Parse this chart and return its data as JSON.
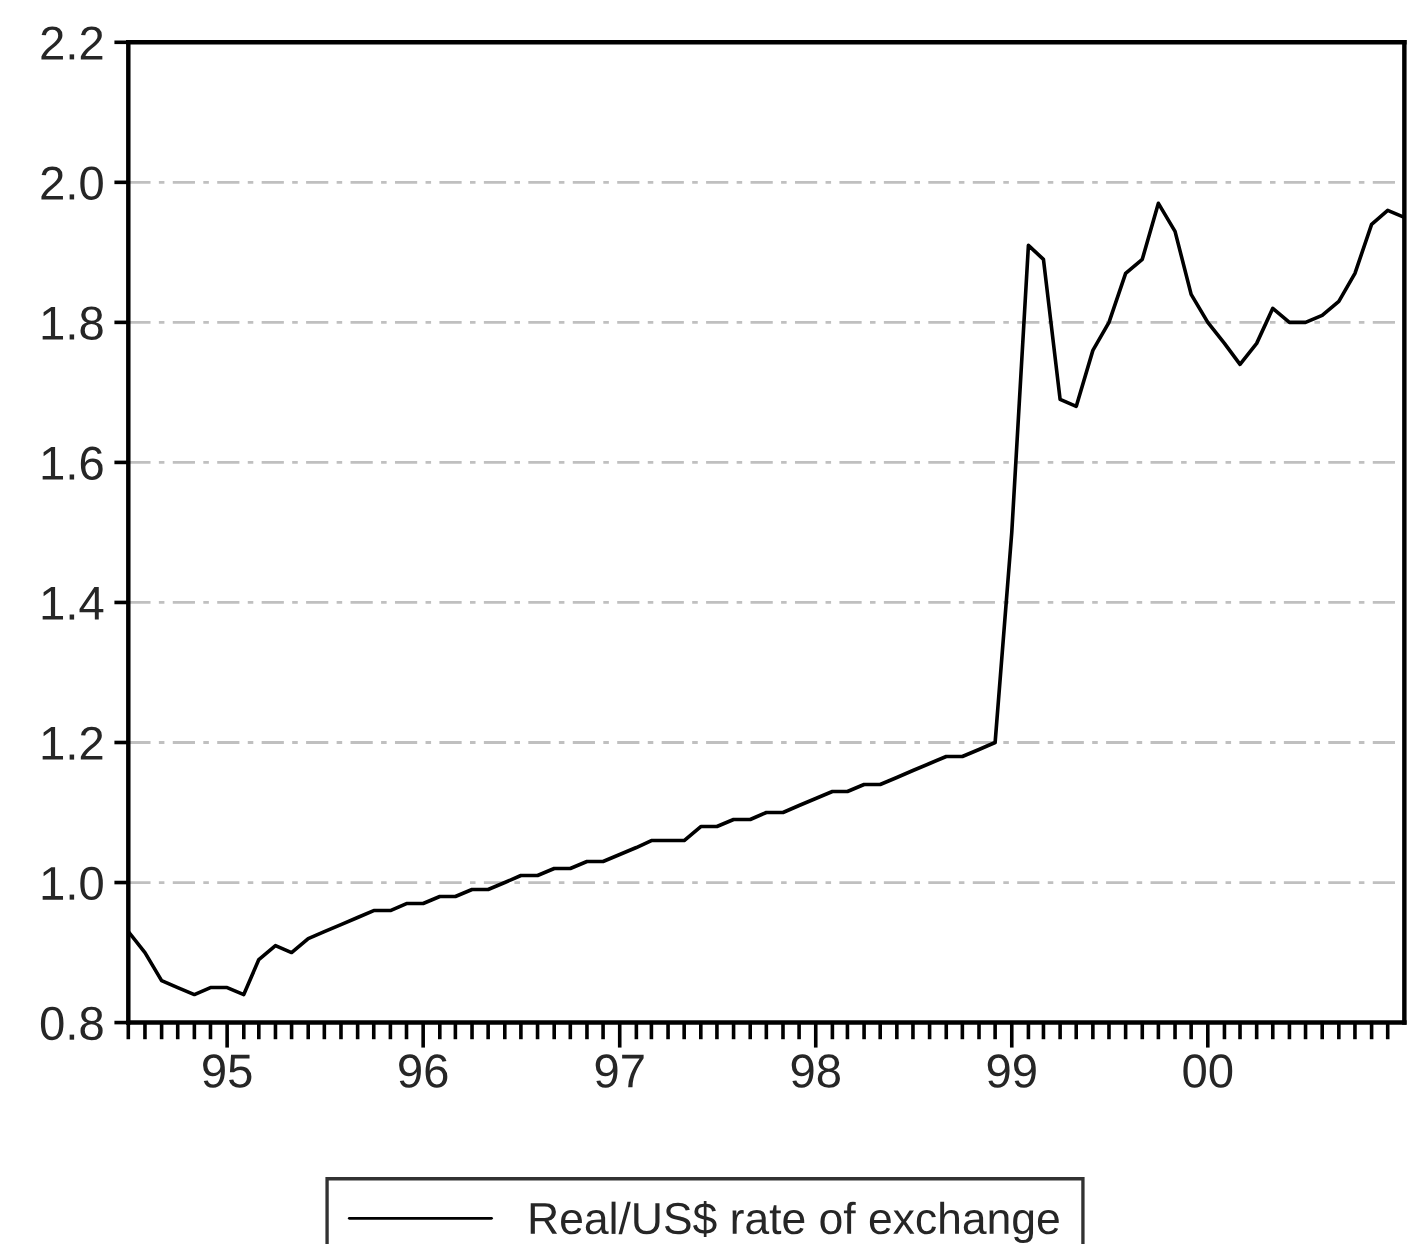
{
  "chart_data": {
    "type": "line",
    "x": [
      "1994-07",
      "1994-08",
      "1994-09",
      "1994-10",
      "1994-11",
      "1994-12",
      "1995-01",
      "1995-02",
      "1995-03",
      "1995-04",
      "1995-05",
      "1995-06",
      "1995-07",
      "1995-08",
      "1995-09",
      "1995-10",
      "1995-11",
      "1995-12",
      "1996-01",
      "1996-02",
      "1996-03",
      "1996-04",
      "1996-05",
      "1996-06",
      "1996-07",
      "1996-08",
      "1996-09",
      "1996-10",
      "1996-11",
      "1996-12",
      "1997-01",
      "1997-02",
      "1997-03",
      "1997-04",
      "1997-05",
      "1997-06",
      "1997-07",
      "1997-08",
      "1997-09",
      "1997-10",
      "1997-11",
      "1997-12",
      "1998-01",
      "1998-02",
      "1998-03",
      "1998-04",
      "1998-05",
      "1998-06",
      "1998-07",
      "1998-08",
      "1998-09",
      "1998-10",
      "1998-11",
      "1998-12",
      "1999-01",
      "1999-02",
      "1999-03",
      "1999-04",
      "1999-05",
      "1999-06",
      "1999-07",
      "1999-08",
      "1999-09",
      "1999-10",
      "1999-11",
      "1999-12",
      "2000-01",
      "2000-02",
      "2000-03",
      "2000-04",
      "2000-05",
      "2000-06",
      "2000-07",
      "2000-08",
      "2000-09",
      "2000-10",
      "2000-11",
      "2000-12",
      "2001-01"
    ],
    "series": [
      {
        "name": "Real/US$ rate of exchange",
        "color": "#000000",
        "values": [
          0.93,
          0.9,
          0.86,
          0.85,
          0.84,
          0.85,
          0.85,
          0.84,
          0.89,
          0.91,
          0.9,
          0.92,
          0.93,
          0.94,
          0.95,
          0.96,
          0.96,
          0.97,
          0.97,
          0.98,
          0.98,
          0.99,
          0.99,
          1.0,
          1.01,
          1.01,
          1.02,
          1.02,
          1.03,
          1.03,
          1.04,
          1.05,
          1.06,
          1.06,
          1.06,
          1.08,
          1.08,
          1.09,
          1.09,
          1.1,
          1.1,
          1.11,
          1.12,
          1.13,
          1.13,
          1.14,
          1.14,
          1.15,
          1.16,
          1.17,
          1.18,
          1.18,
          1.19,
          1.2,
          1.5,
          1.91,
          1.89,
          1.69,
          1.68,
          1.76,
          1.8,
          1.87,
          1.89,
          1.97,
          1.93,
          1.84,
          1.8,
          1.77,
          1.74,
          1.77,
          1.82,
          1.8,
          1.8,
          1.81,
          1.83,
          1.87,
          1.94,
          1.96,
          1.95
        ]
      }
    ],
    "xlim": [
      "1994-07",
      "2001-01"
    ],
    "xticks": [
      {
        "value": "1994-07",
        "label": null
      },
      {
        "value": "1994-08",
        "label": null
      },
      {
        "value": "1994-09",
        "label": null
      },
      {
        "value": "1994-10",
        "label": null
      },
      {
        "value": "1994-11",
        "label": null
      },
      {
        "value": "1994-12",
        "label": null
      },
      {
        "value": "1995-01",
        "label": "95"
      },
      {
        "value": "1995-02",
        "label": null
      },
      {
        "value": "1995-03",
        "label": null
      },
      {
        "value": "1995-04",
        "label": null
      },
      {
        "value": "1995-05",
        "label": null
      },
      {
        "value": "1995-06",
        "label": null
      },
      {
        "value": "1995-07",
        "label": null
      },
      {
        "value": "1995-08",
        "label": null
      },
      {
        "value": "1995-09",
        "label": null
      },
      {
        "value": "1995-10",
        "label": null
      },
      {
        "value": "1995-11",
        "label": null
      },
      {
        "value": "1995-12",
        "label": null
      },
      {
        "value": "1996-01",
        "label": "96"
      },
      {
        "value": "1996-02",
        "label": null
      },
      {
        "value": "1996-03",
        "label": null
      },
      {
        "value": "1996-04",
        "label": null
      },
      {
        "value": "1996-05",
        "label": null
      },
      {
        "value": "1996-06",
        "label": null
      },
      {
        "value": "1996-07",
        "label": null
      },
      {
        "value": "1996-08",
        "label": null
      },
      {
        "value": "1996-09",
        "label": null
      },
      {
        "value": "1996-10",
        "label": null
      },
      {
        "value": "1996-11",
        "label": null
      },
      {
        "value": "1996-12",
        "label": null
      },
      {
        "value": "1997-01",
        "label": "97"
      },
      {
        "value": "1997-02",
        "label": null
      },
      {
        "value": "1997-03",
        "label": null
      },
      {
        "value": "1997-04",
        "label": null
      },
      {
        "value": "1997-05",
        "label": null
      },
      {
        "value": "1997-06",
        "label": null
      },
      {
        "value": "1997-07",
        "label": null
      },
      {
        "value": "1997-08",
        "label": null
      },
      {
        "value": "1997-09",
        "label": null
      },
      {
        "value": "1997-10",
        "label": null
      },
      {
        "value": "1997-11",
        "label": null
      },
      {
        "value": "1997-12",
        "label": null
      },
      {
        "value": "1998-01",
        "label": "98"
      },
      {
        "value": "1998-02",
        "label": null
      },
      {
        "value": "1998-03",
        "label": null
      },
      {
        "value": "1998-04",
        "label": null
      },
      {
        "value": "1998-05",
        "label": null
      },
      {
        "value": "1998-06",
        "label": null
      },
      {
        "value": "1998-07",
        "label": null
      },
      {
        "value": "1998-08",
        "label": null
      },
      {
        "value": "1998-09",
        "label": null
      },
      {
        "value": "1998-10",
        "label": null
      },
      {
        "value": "1998-11",
        "label": null
      },
      {
        "value": "1998-12",
        "label": null
      },
      {
        "value": "1999-01",
        "label": "99"
      },
      {
        "value": "1999-02",
        "label": null
      },
      {
        "value": "1999-03",
        "label": null
      },
      {
        "value": "1999-04",
        "label": null
      },
      {
        "value": "1999-05",
        "label": null
      },
      {
        "value": "1999-06",
        "label": null
      },
      {
        "value": "1999-07",
        "label": null
      },
      {
        "value": "1999-08",
        "label": null
      },
      {
        "value": "1999-09",
        "label": null
      },
      {
        "value": "1999-10",
        "label": null
      },
      {
        "value": "1999-11",
        "label": null
      },
      {
        "value": "1999-12",
        "label": null
      },
      {
        "value": "2000-01",
        "label": "00"
      },
      {
        "value": "2000-02",
        "label": null
      },
      {
        "value": "2000-03",
        "label": null
      },
      {
        "value": "2000-04",
        "label": null
      },
      {
        "value": "2000-05",
        "label": null
      },
      {
        "value": "2000-06",
        "label": null
      },
      {
        "value": "2000-07",
        "label": null
      },
      {
        "value": "2000-08",
        "label": null
      },
      {
        "value": "2000-09",
        "label": null
      },
      {
        "value": "2000-10",
        "label": null
      },
      {
        "value": "2000-11",
        "label": null
      },
      {
        "value": "2000-12",
        "label": null
      }
    ],
    "ylim": [
      0.8,
      2.2
    ],
    "yticks": [
      0.8,
      {
        "value": 1,
        "label": "1.0"
      },
      1.2,
      1.4,
      1.6,
      1.8,
      {
        "value": 2,
        "label": "2.0"
      },
      2.2
    ],
    "grid": "y",
    "legend": "bottom",
    "marker": "none",
    "line_style": "solid"
  }
}
